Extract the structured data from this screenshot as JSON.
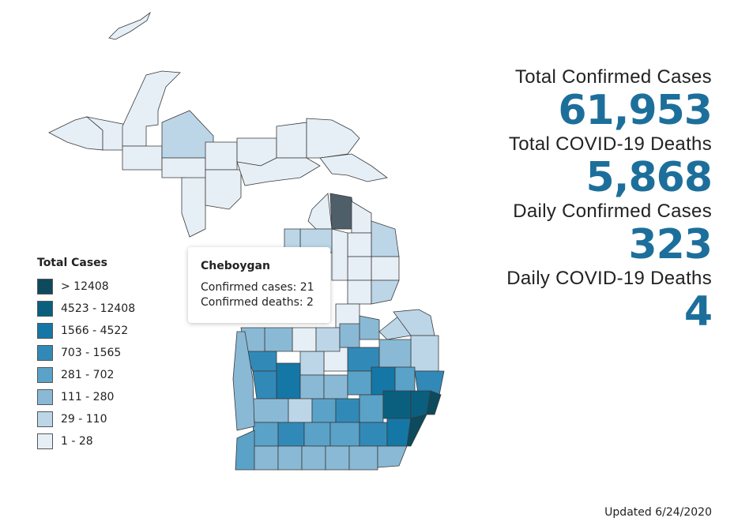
{
  "legend": {
    "title": "Total Cases",
    "bins": [
      {
        "label": "> 12408",
        "color": "#0d4a5e"
      },
      {
        "label": "4523 - 12408",
        "color": "#0a5f7e"
      },
      {
        "label": "1566 - 4522",
        "color": "#1577a6"
      },
      {
        "label": "703 - 1565",
        "color": "#3189b8"
      },
      {
        "label": "281 - 702",
        "color": "#5aa2c8"
      },
      {
        "label": "111 - 280",
        "color": "#8ab9d5"
      },
      {
        "label": "29 - 110",
        "color": "#bcd6e8"
      },
      {
        "label": "1 - 28",
        "color": "#e7eff6"
      }
    ]
  },
  "tooltip": {
    "county": "Cheboygan",
    "cases_line": "Confirmed cases: 21",
    "deaths_line": "Confirmed deaths: 2"
  },
  "stats": {
    "total_cases_label": "Total Confirmed Cases",
    "total_cases_value": "61,953",
    "total_deaths_label": "Total COVID-19 Deaths",
    "total_deaths_value": "5,868",
    "daily_cases_label": "Daily Confirmed Cases",
    "daily_cases_value": "323",
    "daily_deaths_label": "Daily COVID-19 Deaths",
    "daily_deaths_value": "4"
  },
  "updated": "Updated 6/24/2020",
  "colors": {
    "highlight": "#4f5f69",
    "stat_value": "#1d6f9b",
    "border": "#3a3a3a"
  }
}
